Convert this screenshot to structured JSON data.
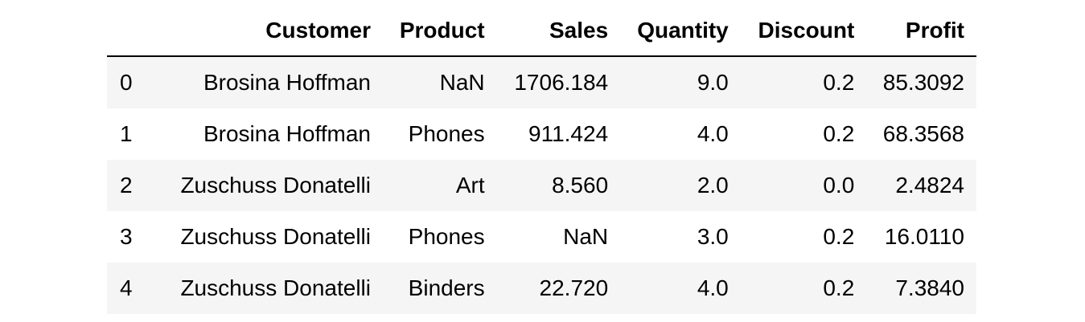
{
  "table": {
    "columns": [
      "",
      "Customer",
      "Product",
      "Sales",
      "Quantity",
      "Discount",
      "Profit"
    ],
    "rows": [
      [
        "0",
        "Brosina Hoffman",
        "NaN",
        "1706.184",
        "9.0",
        "0.2",
        "85.3092"
      ],
      [
        "1",
        "Brosina Hoffman",
        "Phones",
        "911.424",
        "4.0",
        "0.2",
        "68.3568"
      ],
      [
        "2",
        "Zuschuss Donatelli",
        "Art",
        "8.560",
        "2.0",
        "0.0",
        "2.4824"
      ],
      [
        "3",
        "Zuschuss Donatelli",
        "Phones",
        "NaN",
        "3.0",
        "0.2",
        "16.0110"
      ],
      [
        "4",
        "Zuschuss Donatelli",
        "Binders",
        "22.720",
        "4.0",
        "0.2",
        "7.3840"
      ]
    ]
  },
  "colors": {
    "stripe": "#f5f5f5",
    "header_rule": "#000000",
    "text": "#000000"
  }
}
